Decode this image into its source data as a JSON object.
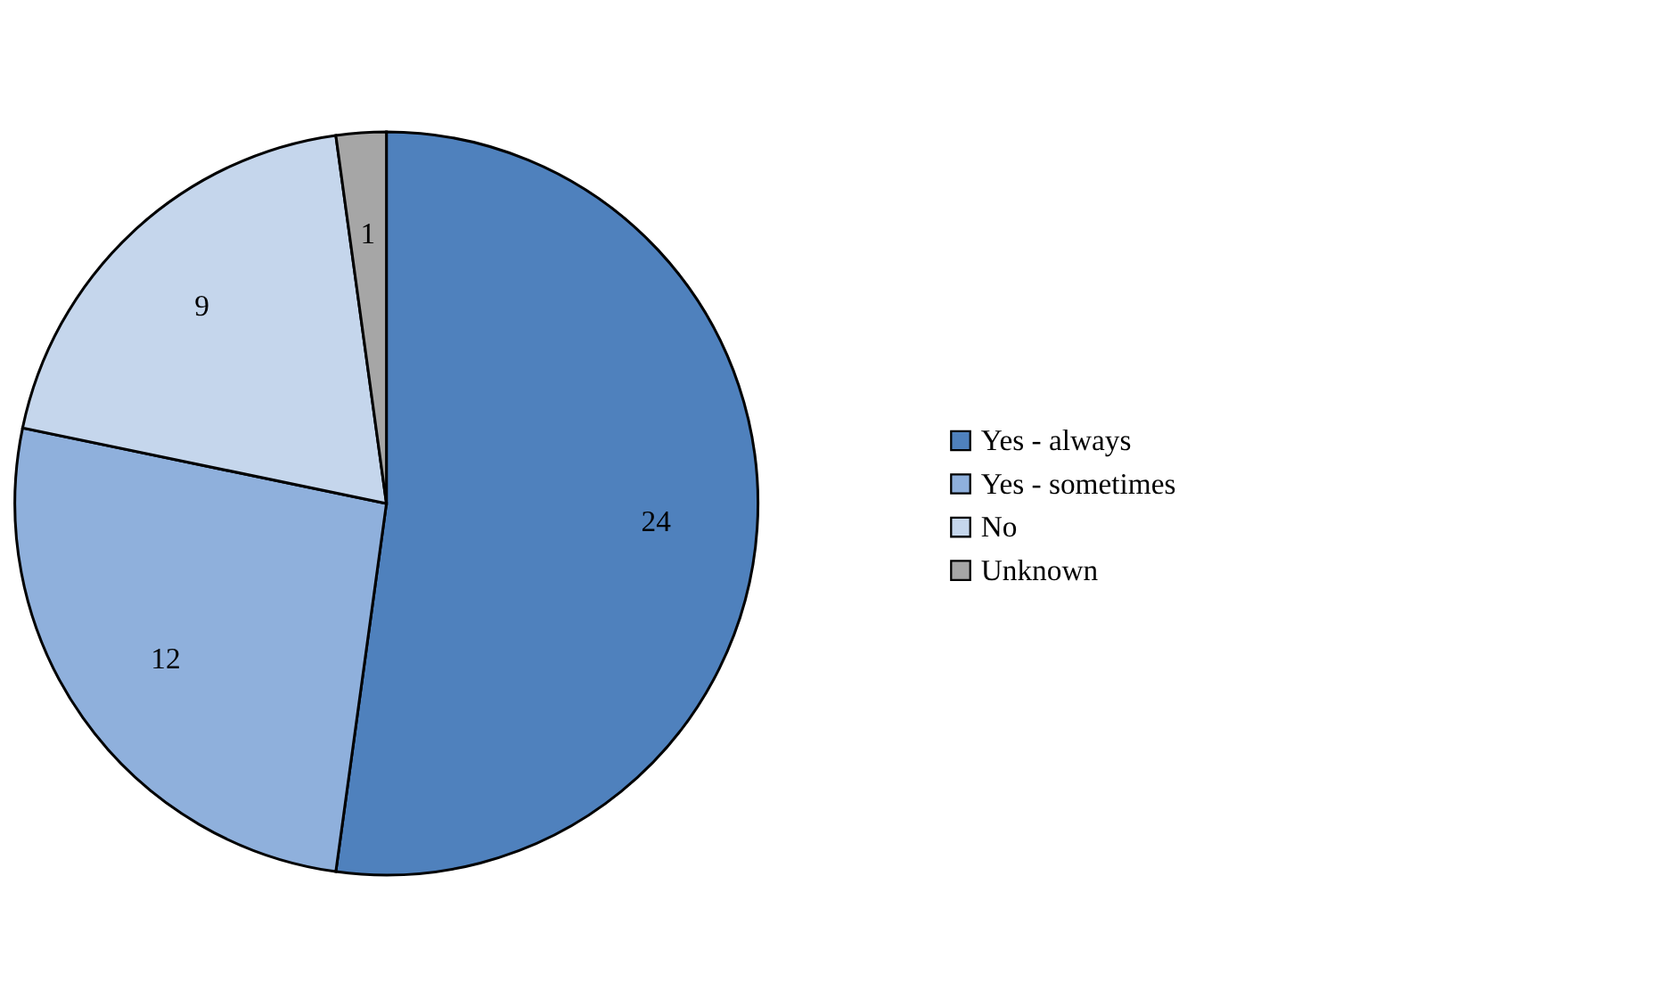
{
  "chart_data": {
    "type": "pie",
    "categories": [
      "Yes - always",
      "Yes - sometimes",
      "No",
      "Unknown"
    ],
    "values": [
      24,
      12,
      9,
      1
    ],
    "colors": [
      "#4f81bd",
      "#8fb0dc",
      "#c5d6ec",
      "#a6a6a6"
    ],
    "data_labels": true,
    "legend": "right"
  }
}
